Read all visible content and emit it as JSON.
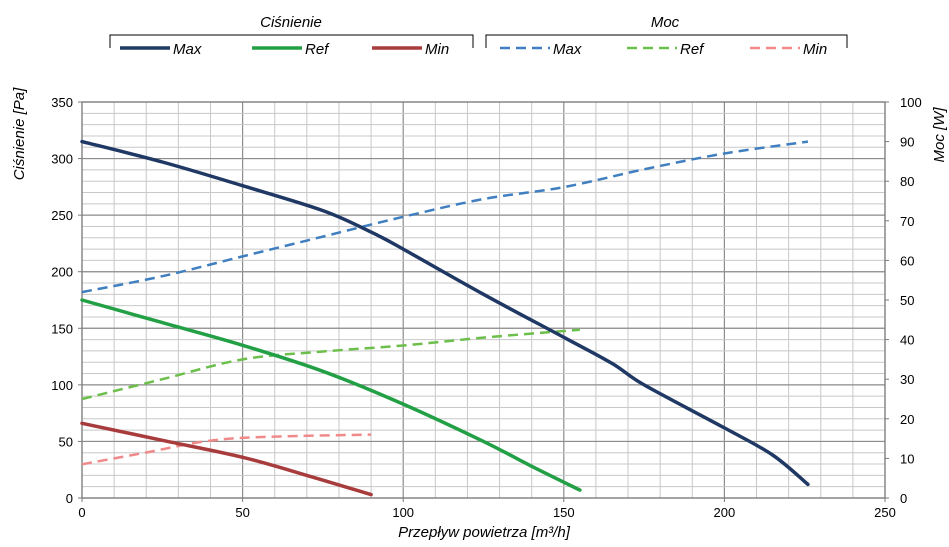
{
  "chart_data": {
    "type": "line",
    "x_label": "Przepływ powietrza  [m³/h]",
    "y_left_label": "Ciśnienie [Pa]",
    "y_right_label": "Moc [W]",
    "xlim": [
      0,
      250
    ],
    "ylim_left": [
      0,
      350
    ],
    "ylim_right": [
      0,
      100
    ],
    "x_ticks": [
      0,
      50,
      100,
      150,
      200,
      250
    ],
    "y_left_ticks": [
      0,
      50,
      100,
      150,
      200,
      250,
      300,
      350
    ],
    "y_right_ticks": [
      0,
      10,
      20,
      30,
      40,
      50,
      60,
      70,
      80,
      90,
      100
    ],
    "grid": true,
    "legend_groups": [
      {
        "title": "Ciśnienie",
        "entries": [
          "Max",
          "Ref",
          "Min"
        ]
      },
      {
        "title": "Moc",
        "entries": [
          "Max",
          "Ref",
          "Min"
        ]
      }
    ],
    "series": [
      {
        "name": "Max",
        "group": "Ciśnienie",
        "axis": "left",
        "style": "solid",
        "color": "#1f3864",
        "x": [
          0,
          25,
          50,
          75,
          90,
          100,
          125,
          150,
          165,
          175,
          200,
          215,
          226
        ],
        "y": [
          315,
          297,
          276,
          254,
          235,
          220,
          180,
          142,
          119,
          100,
          62,
          38,
          12
        ]
      },
      {
        "name": "Ref",
        "group": "Ciśnienie",
        "axis": "left",
        "style": "solid",
        "color": "#23a045",
        "x": [
          0,
          25,
          50,
          75,
          100,
          125,
          140,
          155
        ],
        "y": [
          175,
          155,
          135,
          112,
          83,
          50,
          28,
          7
        ]
      },
      {
        "name": "Min",
        "group": "Ciśnienie",
        "axis": "left",
        "style": "solid",
        "color": "#a83c3c",
        "x": [
          0,
          25,
          50,
          70,
          90
        ],
        "y": [
          66,
          51,
          36,
          20,
          3
        ]
      },
      {
        "name": "Max",
        "group": "Moc",
        "axis": "right",
        "style": "dashed",
        "color": "#3f7fc0",
        "x": [
          0,
          25,
          50,
          75,
          100,
          125,
          150,
          175,
          200,
          226
        ],
        "y": [
          52,
          56,
          61,
          66,
          71,
          75.5,
          78.5,
          83,
          87,
          90
        ]
      },
      {
        "name": "Ref",
        "group": "Moc",
        "axis": "right",
        "style": "dashed",
        "color": "#6cbf4a",
        "x": [
          0,
          25,
          50,
          75,
          100,
          125,
          155
        ],
        "y": [
          25,
          30,
          35,
          37,
          38.5,
          40.5,
          42.5
        ]
      },
      {
        "name": "Min",
        "group": "Moc",
        "axis": "right",
        "style": "dashed",
        "color": "#f08a8a",
        "x": [
          0,
          20,
          40,
          60,
          90
        ],
        "y": [
          8.5,
          11.5,
          14.5,
          15.5,
          16
        ]
      }
    ]
  }
}
